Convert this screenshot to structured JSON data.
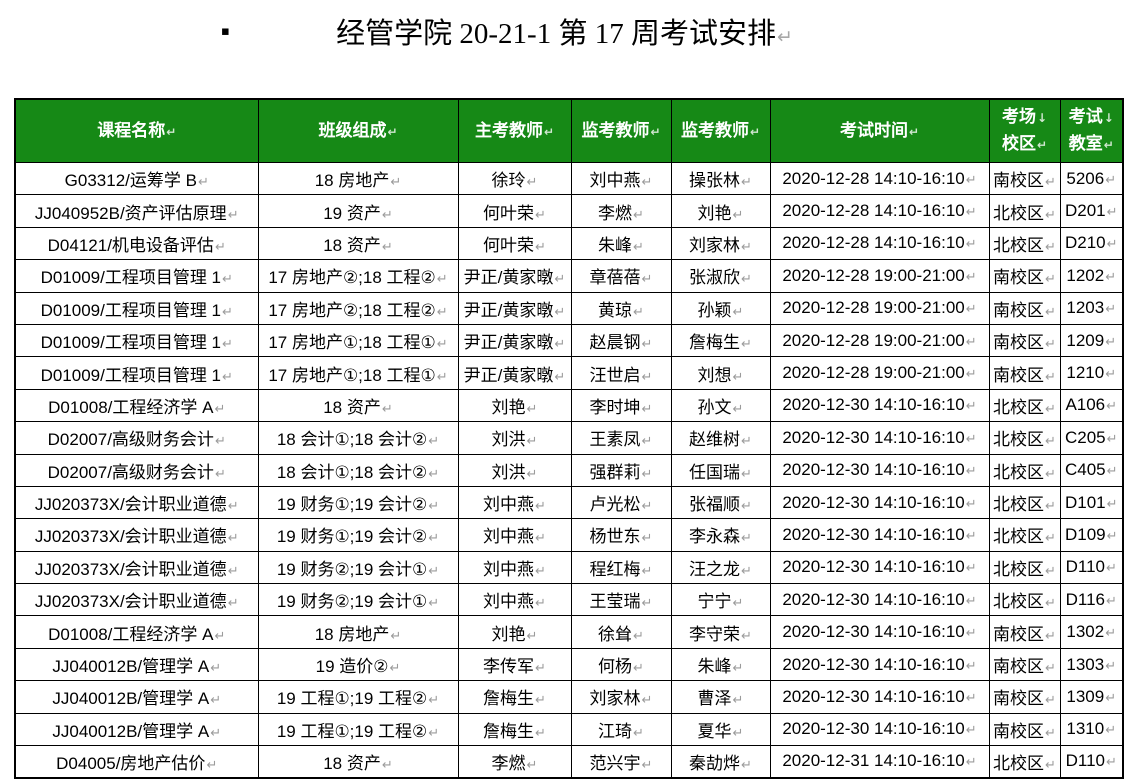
{
  "page": {
    "title": "经管学院 20-21-1 第 17 周考试安排",
    "bullet": "▪",
    "return_mark": "↵",
    "linebreak_mark": "↓"
  },
  "colors": {
    "header_bg": "#168916",
    "header_text": "#ffffff",
    "body_text": "#000000",
    "mark_gray": "#9b9b9b",
    "border": "#000000"
  },
  "table": {
    "columns": [
      {
        "id": "course",
        "lines": [
          "课程名称"
        ]
      },
      {
        "id": "classes",
        "lines": [
          "班级组成"
        ]
      },
      {
        "id": "examiner",
        "lines": [
          "主考教师"
        ]
      },
      {
        "id": "invigilator1",
        "lines": [
          "监考教师"
        ]
      },
      {
        "id": "invigilator2",
        "lines": [
          "监考教师"
        ]
      },
      {
        "id": "time",
        "lines": [
          "考试时间"
        ]
      },
      {
        "id": "campus",
        "lines": [
          "考场",
          "校区"
        ]
      },
      {
        "id": "room",
        "lines": [
          "考试",
          "教室"
        ]
      }
    ],
    "rows": [
      [
        "G03312/运筹学 B",
        "18 房地产",
        "徐玲",
        "刘中燕",
        "操张林",
        "2020-12-28 14:10-16:10",
        "南校区",
        "5206"
      ],
      [
        "JJ040952B/资产评估原理",
        "19 资产",
        "何叶荣",
        "李燃",
        "刘艳",
        "2020-12-28 14:10-16:10",
        "北校区",
        "D201"
      ],
      [
        "D04121/机电设备评估",
        "18 资产",
        "何叶荣",
        "朱峰",
        "刘家林",
        "2020-12-28 14:10-16:10",
        "北校区",
        "D210"
      ],
      [
        "D01009/工程项目管理 1",
        "17 房地产②;18 工程②",
        "尹正/黄家暾",
        "章蓓蓓",
        "张淑欣",
        "2020-12-28 19:00-21:00",
        "南校区",
        "1202"
      ],
      [
        "D01009/工程项目管理 1",
        "17 房地产②;18 工程②",
        "尹正/黄家暾",
        "黄琼",
        "孙颖",
        "2020-12-28 19:00-21:00",
        "南校区",
        "1203"
      ],
      [
        "D01009/工程项目管理 1",
        "17 房地产①;18 工程①",
        "尹正/黄家暾",
        "赵晨钢",
        "詹梅生",
        "2020-12-28 19:00-21:00",
        "南校区",
        "1209"
      ],
      [
        "D01009/工程项目管理 1",
        "17 房地产①;18 工程①",
        "尹正/黄家暾",
        "汪世启",
        "刘想",
        "2020-12-28 19:00-21:00",
        "南校区",
        "1210"
      ],
      [
        "D01008/工程经济学 A",
        "18 资产",
        "刘艳",
        "李时坤",
        "孙文",
        "2020-12-30 14:10-16:10",
        "北校区",
        "A106"
      ],
      [
        "D02007/高级财务会计",
        "18 会计①;18 会计②",
        "刘洪",
        "王素凤",
        "赵维树",
        "2020-12-30 14:10-16:10",
        "北校区",
        "C205"
      ],
      [
        "D02007/高级财务会计",
        "18 会计①;18 会计②",
        "刘洪",
        "强群莉",
        "任国瑞",
        "2020-12-30 14:10-16:10",
        "北校区",
        "C405"
      ],
      [
        "JJ020373X/会计职业道德",
        "19 财务①;19 会计②",
        "刘中燕",
        "卢光松",
        "张福顺",
        "2020-12-30 14:10-16:10",
        "北校区",
        "D101"
      ],
      [
        "JJ020373X/会计职业道德",
        "19 财务①;19 会计②",
        "刘中燕",
        "杨世东",
        "李永森",
        "2020-12-30 14:10-16:10",
        "北校区",
        "D109"
      ],
      [
        "JJ020373X/会计职业道德",
        "19 财务②;19 会计①",
        "刘中燕",
        "程红梅",
        "汪之龙",
        "2020-12-30 14:10-16:10",
        "北校区",
        "D110"
      ],
      [
        "JJ020373X/会计职业道德",
        "19 财务②;19 会计①",
        "刘中燕",
        "王莹瑞",
        "宁宁",
        "2020-12-30 14:10-16:10",
        "北校区",
        "D116"
      ],
      [
        "D01008/工程经济学 A",
        "18 房地产",
        "刘艳",
        "徐耸",
        "李守荣",
        "2020-12-30 14:10-16:10",
        "南校区",
        "1302"
      ],
      [
        "JJ040012B/管理学 A",
        "19 造价②",
        "李传军",
        "何杨",
        "朱峰",
        "2020-12-30 14:10-16:10",
        "南校区",
        "1303"
      ],
      [
        "JJ040012B/管理学 A",
        "19 工程①;19 工程②",
        "詹梅生",
        "刘家林",
        "曹泽",
        "2020-12-30 14:10-16:10",
        "南校区",
        "1309"
      ],
      [
        "JJ040012B/管理学 A",
        "19 工程①;19 工程②",
        "詹梅生",
        "江琦",
        "夏华",
        "2020-12-30 14:10-16:10",
        "南校区",
        "1310"
      ],
      [
        "D04005/房地产估价",
        "18 资产",
        "李燃",
        "范兴宇",
        "秦劼烨",
        "2020-12-31 14:10-16:10",
        "北校区",
        "D110"
      ]
    ]
  }
}
